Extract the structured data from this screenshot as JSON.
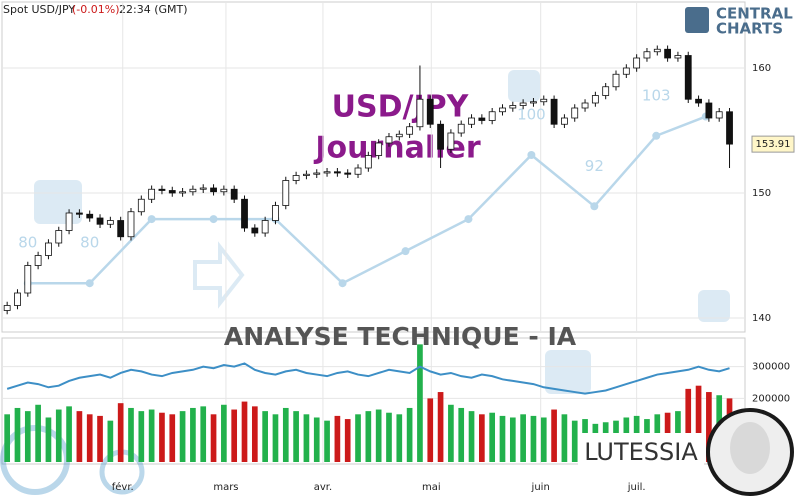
{
  "header": {
    "instrument": "Spot USD/JPY",
    "change": "(-0.01%)",
    "time": "22:34 (GMT)",
    "logo_top": "CENTRAL",
    "logo_bottom": "CHARTS"
  },
  "chart_data": {
    "type": "candlestick",
    "title": "USD/JPY",
    "subtitle": "Journalier",
    "banner": "ANALYSE TECHNIQUE - IA",
    "brand": "LUTESSIA",
    "up_color": "#22b14c",
    "down_color": "#cc1a1a",
    "grid": true,
    "ylim": [
      139.04,
      165.04
    ],
    "yticks": [
      140,
      150,
      160
    ],
    "xlim": [
      -0.5,
      71.5
    ],
    "xticks": [
      {
        "value": 11.2,
        "label": "févr."
      },
      {
        "value": 21.2,
        "label": "mars"
      },
      {
        "value": 30.6,
        "label": "avr."
      },
      {
        "value": 41.1,
        "label": "mai"
      },
      {
        "value": 51.7,
        "label": "juin"
      },
      {
        "value": 61,
        "label": "juil."
      }
    ],
    "candles": [
      [
        140.6,
        141.3,
        140.3,
        141.0
      ],
      [
        141.0,
        142.3,
        140.7,
        142.0
      ],
      [
        142.0,
        144.5,
        141.7,
        144.2
      ],
      [
        144.2,
        145.3,
        143.9,
        145.0
      ],
      [
        145.0,
        146.3,
        144.7,
        146.0
      ],
      [
        146.0,
        147.3,
        145.7,
        147.0
      ],
      [
        147.0,
        148.7,
        146.7,
        148.4
      ],
      [
        148.4,
        148.7,
        148.0,
        148.3
      ],
      [
        148.3,
        148.6,
        147.7,
        148.0
      ],
      [
        148.0,
        148.3,
        147.2,
        147.5
      ],
      [
        147.5,
        148.1,
        147.2,
        147.8
      ],
      [
        147.8,
        148.1,
        146.2,
        146.5
      ],
      [
        146.5,
        148.8,
        146.2,
        148.5
      ],
      [
        148.5,
        149.8,
        148.2,
        149.5
      ],
      [
        149.5,
        150.6,
        149.2,
        150.3
      ],
      [
        150.3,
        150.6,
        149.9,
        150.2
      ],
      [
        150.2,
        150.5,
        149.7,
        150.0
      ],
      [
        150.0,
        150.4,
        149.7,
        150.1
      ],
      [
        150.1,
        150.6,
        149.8,
        150.3
      ],
      [
        150.3,
        150.7,
        150.0,
        150.4
      ],
      [
        150.4,
        150.7,
        149.8,
        150.1
      ],
      [
        150.1,
        150.6,
        149.8,
        150.3
      ],
      [
        150.3,
        150.6,
        149.2,
        149.5
      ],
      [
        149.5,
        149.8,
        146.9,
        147.2
      ],
      [
        147.2,
        147.5,
        146.5,
        146.8
      ],
      [
        146.8,
        148.1,
        146.5,
        147.8
      ],
      [
        147.8,
        149.3,
        147.5,
        149.0
      ],
      [
        149.0,
        151.3,
        148.7,
        151.0
      ],
      [
        151.0,
        151.7,
        150.7,
        151.4
      ],
      [
        151.4,
        151.8,
        151.1,
        151.5
      ],
      [
        151.5,
        151.9,
        151.2,
        151.6
      ],
      [
        151.6,
        152.0,
        151.3,
        151.7
      ],
      [
        151.7,
        152.0,
        151.3,
        151.6
      ],
      [
        151.6,
        151.9,
        151.2,
        151.5
      ],
      [
        151.5,
        152.3,
        151.2,
        152.0
      ],
      [
        152.0,
        153.3,
        151.7,
        153.0
      ],
      [
        153.0,
        154.3,
        152.7,
        154.0
      ],
      [
        154.0,
        154.8,
        153.7,
        154.5
      ],
      [
        154.5,
        155.0,
        154.2,
        154.7
      ],
      [
        154.7,
        155.6,
        154.4,
        155.3
      ],
      [
        155.3,
        160.2,
        155.0,
        157.5
      ],
      [
        157.5,
        157.8,
        155.2,
        155.5
      ],
      [
        155.5,
        155.8,
        152.0,
        153.5
      ],
      [
        153.5,
        155.1,
        153.2,
        154.8
      ],
      [
        154.8,
        155.8,
        154.5,
        155.5
      ],
      [
        155.5,
        156.3,
        155.2,
        156.0
      ],
      [
        156.0,
        156.3,
        155.5,
        155.8
      ],
      [
        155.8,
        156.8,
        155.5,
        156.5
      ],
      [
        156.5,
        157.1,
        156.2,
        156.8
      ],
      [
        156.8,
        157.3,
        156.5,
        157.0
      ],
      [
        157.0,
        157.5,
        156.7,
        157.2
      ],
      [
        157.2,
        157.6,
        156.9,
        157.3
      ],
      [
        157.3,
        157.8,
        157.0,
        157.5
      ],
      [
        157.5,
        157.8,
        155.2,
        155.5
      ],
      [
        155.5,
        156.3,
        155.2,
        156.0
      ],
      [
        156.0,
        157.1,
        155.7,
        156.8
      ],
      [
        156.8,
        157.5,
        156.5,
        157.2
      ],
      [
        157.2,
        158.1,
        156.9,
        157.8
      ],
      [
        157.8,
        158.8,
        157.5,
        158.5
      ],
      [
        158.5,
        159.8,
        158.2,
        159.5
      ],
      [
        159.5,
        160.3,
        159.2,
        160.0
      ],
      [
        160.0,
        161.1,
        159.7,
        160.8
      ],
      [
        160.8,
        161.6,
        160.5,
        161.3
      ],
      [
        161.3,
        161.8,
        161.0,
        161.5
      ],
      [
        161.5,
        161.8,
        160.5,
        160.8
      ],
      [
        160.8,
        161.3,
        160.5,
        161.0
      ],
      [
        161.0,
        161.3,
        157.2,
        157.5
      ],
      [
        157.5,
        157.8,
        156.9,
        157.2
      ],
      [
        157.2,
        157.5,
        155.7,
        156.0
      ],
      [
        156.0,
        156.8,
        155.7,
        156.5
      ],
      [
        156.5,
        156.8,
        152.0,
        153.91
      ]
    ],
    "ia_line": {
      "color": "#b9d7ea",
      "ylim": [
        72.7,
        123.4
      ],
      "x": [
        2,
        8,
        14,
        20,
        26,
        32.5,
        38.6,
        44.7,
        50.8,
        56.9,
        62.9,
        67.7
      ],
      "values": [
        80,
        80,
        90,
        90,
        90,
        80,
        85,
        90,
        100,
        92,
        103,
        106
      ],
      "value_labels": [
        "80",
        "80",
        null,
        null,
        null,
        null,
        null,
        null,
        "100",
        "92",
        "103",
        null
      ]
    },
    "volume": {
      "ylim": [
        0,
        390000
      ],
      "yticks": [
        200000,
        300000
      ],
      "line_color": "#3d8fc6",
      "values": [
        150000,
        170000,
        160000,
        180000,
        140000,
        165000,
        175000,
        160000,
        150000,
        145000,
        130000,
        185000,
        170000,
        160000,
        165000,
        155000,
        150000,
        160000,
        170000,
        175000,
        150000,
        180000,
        165000,
        190000,
        175000,
        160000,
        150000,
        170000,
        160000,
        150000,
        140000,
        130000,
        145000,
        135000,
        150000,
        160000,
        165000,
        155000,
        150000,
        170000,
        370000,
        200000,
        220000,
        180000,
        170000,
        160000,
        150000,
        155000,
        145000,
        140000,
        150000,
        145000,
        140000,
        165000,
        150000,
        130000,
        135000,
        120000,
        125000,
        130000,
        140000,
        145000,
        135000,
        150000,
        155000,
        160000,
        230000,
        240000,
        220000,
        210000,
        200000
      ],
      "line": [
        230000,
        240000,
        250000,
        245000,
        235000,
        240000,
        255000,
        265000,
        270000,
        275000,
        265000,
        280000,
        290000,
        285000,
        275000,
        270000,
        280000,
        285000,
        290000,
        300000,
        295000,
        305000,
        300000,
        310000,
        290000,
        280000,
        275000,
        285000,
        290000,
        280000,
        275000,
        270000,
        280000,
        285000,
        275000,
        270000,
        280000,
        290000,
        285000,
        280000,
        300000,
        285000,
        275000,
        280000,
        270000,
        265000,
        275000,
        270000,
        260000,
        255000,
        250000,
        245000,
        235000,
        230000,
        225000,
        220000,
        215000,
        220000,
        225000,
        235000,
        245000,
        255000,
        265000,
        275000,
        280000,
        285000,
        290000,
        300000,
        290000,
        285000,
        295000
      ]
    }
  }
}
